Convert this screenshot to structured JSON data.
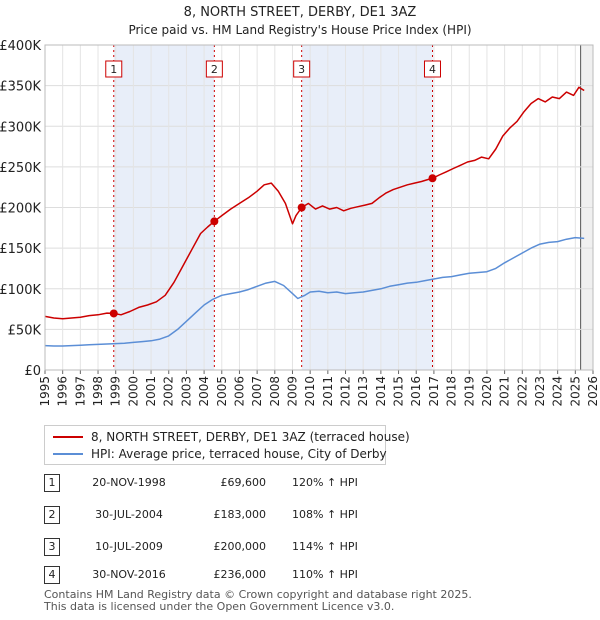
{
  "chart_data": {
    "type": "line",
    "title_line1": "8, NORTH STREET, DERBY, DE1 3AZ",
    "title_line2": "Price paid vs. HM Land Registry's House Price Index (HPI)",
    "xlim": [
      1995,
      2026
    ],
    "ylim": [
      0,
      400000
    ],
    "y_ticks": [
      {
        "value": 0,
        "label": "£0"
      },
      {
        "value": 50000,
        "label": "£50K"
      },
      {
        "value": 100000,
        "label": "£100K"
      },
      {
        "value": 150000,
        "label": "£150K"
      },
      {
        "value": 200000,
        "label": "£200K"
      },
      {
        "value": 250000,
        "label": "£250K"
      },
      {
        "value": 300000,
        "label": "£300K"
      },
      {
        "value": 350000,
        "label": "£350K"
      },
      {
        "value": 400000,
        "label": "£400K"
      }
    ],
    "x_ticks": [
      "1995",
      "1996",
      "1997",
      "1998",
      "1999",
      "2000",
      "2001",
      "2002",
      "2003",
      "2004",
      "2005",
      "2006",
      "2007",
      "2008",
      "2009",
      "2010",
      "2011",
      "2012",
      "2013",
      "2014",
      "2015",
      "2016",
      "2017",
      "2018",
      "2019",
      "2020",
      "2021",
      "2022",
      "2023",
      "2024",
      "2025",
      "2026"
    ],
    "shaded_ranges": [
      [
        1998.89,
        2004.58
      ],
      [
        2009.52,
        2016.92
      ]
    ],
    "forecast_start": 2025.3,
    "series": [
      {
        "name": "8, NORTH STREET, DERBY, DE1 3AZ (terraced house)",
        "color": "#cc0000",
        "x": [
          1995,
          1995.5,
          1996,
          1996.5,
          1997,
          1997.5,
          1998,
          1998.5,
          1998.89,
          1999.3,
          1999.8,
          2000.3,
          2000.8,
          2001.3,
          2001.8,
          2002.3,
          2002.8,
          2003.3,
          2003.8,
          2004.2,
          2004.58,
          2005,
          2005.5,
          2006,
          2006.5,
          2007,
          2007.4,
          2007.8,
          2008.2,
          2008.6,
          2009,
          2009.2,
          2009.52,
          2009.9,
          2010.3,
          2010.7,
          2011.1,
          2011.5,
          2011.9,
          2012.3,
          2012.7,
          2013.1,
          2013.5,
          2013.9,
          2014.3,
          2014.7,
          2015.1,
          2015.5,
          2015.9,
          2016.3,
          2016.6,
          2016.92,
          2017.3,
          2017.7,
          2018.1,
          2018.5,
          2018.9,
          2019.3,
          2019.7,
          2020.1,
          2020.5,
          2020.9,
          2021.3,
          2021.7,
          2022.1,
          2022.5,
          2022.9,
          2023.3,
          2023.7,
          2024.1,
          2024.5,
          2024.9,
          2025.2,
          2025.5
        ],
        "values": [
          66000,
          64000,
          63000,
          64000,
          65000,
          67000,
          68000,
          70000,
          69600,
          68000,
          72000,
          77000,
          80000,
          84000,
          92000,
          108000,
          128000,
          148000,
          168000,
          176000,
          183000,
          190000,
          198000,
          205000,
          212000,
          220000,
          228000,
          230000,
          220000,
          205000,
          180000,
          190000,
          200000,
          205000,
          198000,
          202000,
          198000,
          200000,
          196000,
          199000,
          201000,
          203000,
          205000,
          212000,
          218000,
          222000,
          225000,
          228000,
          230000,
          232000,
          234000,
          236000,
          240000,
          244000,
          248000,
          252000,
          256000,
          258000,
          262000,
          260000,
          272000,
          288000,
          298000,
          306000,
          318000,
          328000,
          334000,
          330000,
          336000,
          334000,
          342000,
          338000,
          348000,
          344000
        ]
      },
      {
        "name": "HPI: Average price, terraced house, City of Derby",
        "color": "#5b8ed6",
        "x": [
          1995,
          1995.5,
          1996,
          1996.5,
          1997,
          1997.5,
          1998,
          1998.5,
          1999,
          1999.5,
          2000,
          2000.5,
          2001,
          2001.5,
          2002,
          2002.5,
          2003,
          2003.5,
          2004,
          2004.5,
          2005,
          2005.5,
          2006,
          2006.5,
          2007,
          2007.5,
          2008,
          2008.5,
          2009,
          2009.3,
          2009.7,
          2010,
          2010.5,
          2011,
          2011.5,
          2012,
          2012.5,
          2013,
          2013.5,
          2014,
          2014.5,
          2015,
          2015.5,
          2016,
          2016.5,
          2017,
          2017.5,
          2018,
          2018.5,
          2019,
          2019.5,
          2020,
          2020.5,
          2021,
          2021.5,
          2022,
          2022.5,
          2023,
          2023.5,
          2024,
          2024.5,
          2025,
          2025.5
        ],
        "values": [
          30000,
          29500,
          29500,
          30000,
          30500,
          31000,
          31500,
          32000,
          32500,
          33000,
          34000,
          35000,
          36000,
          38000,
          42000,
          50000,
          60000,
          70000,
          80000,
          87000,
          92000,
          94000,
          96000,
          99000,
          103000,
          107000,
          109000,
          104000,
          94000,
          88000,
          92000,
          96000,
          97000,
          95000,
          96000,
          94000,
          95000,
          96000,
          98000,
          100000,
          103000,
          105000,
          107000,
          108000,
          110000,
          112000,
          114000,
          115000,
          117000,
          119000,
          120000,
          121000,
          125000,
          132000,
          138000,
          144000,
          150000,
          155000,
          157000,
          158000,
          161000,
          163000,
          162000
        ]
      }
    ],
    "sales": [
      {
        "label": "1",
        "x": 1998.89,
        "value": 69600
      },
      {
        "label": "2",
        "x": 2004.58,
        "value": 183000
      },
      {
        "label": "3",
        "x": 2009.52,
        "value": 200000
      },
      {
        "label": "4",
        "x": 2016.92,
        "value": 236000
      }
    ]
  },
  "legend": {
    "property_label": "8, NORTH STREET, DERBY, DE1 3AZ (terraced house)",
    "hpi_label": "HPI: Average price, terraced house, City of Derby",
    "property_color": "#cc0000",
    "hpi_color": "#5b8ed6"
  },
  "transactions": [
    {
      "num": "1",
      "date": "20-NOV-1998",
      "price": "£69,600",
      "hpi": "120% ↑ HPI"
    },
    {
      "num": "2",
      "date": "30-JUL-2004",
      "price": "£183,000",
      "hpi": "108% ↑ HPI"
    },
    {
      "num": "3",
      "date": "10-JUL-2009",
      "price": "£200,000",
      "hpi": "114% ↑ HPI"
    },
    {
      "num": "4",
      "date": "30-NOV-2016",
      "price": "£236,000",
      "hpi": "110% ↑ HPI"
    }
  ],
  "footer": {
    "line1": "Contains HM Land Registry data © Crown copyright and database right 2025.",
    "line2": "This data is licensed under the Open Government Licence v3.0."
  }
}
